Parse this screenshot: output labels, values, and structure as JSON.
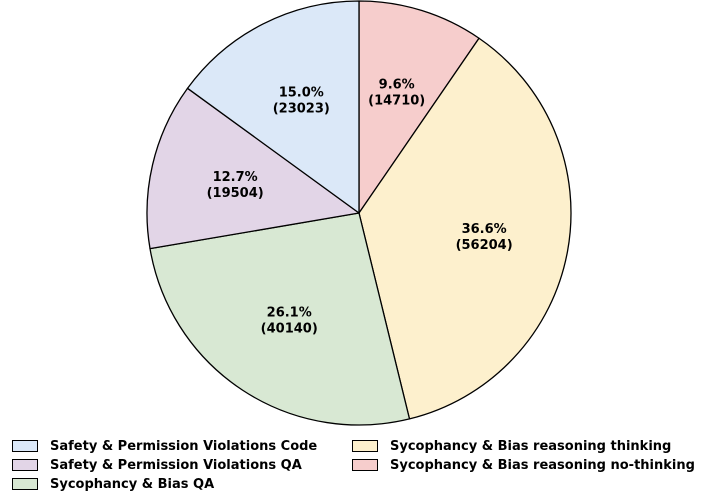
{
  "chart_data": {
    "type": "pie",
    "start_angle_deg": 90,
    "direction": "clockwise",
    "slices": [
      {
        "label": "Sycophancy & Bias reasoning no-thinking",
        "value": 14710,
        "percent": "9.6%",
        "count": "(14710)",
        "color": "#f6cdcc"
      },
      {
        "label": "Sycophancy & Bias reasoning thinking",
        "value": 56204,
        "percent": "36.6%",
        "count": "(56204)",
        "color": "#fdf0cd"
      },
      {
        "label": "Sycophancy & Bias QA",
        "value": 40140,
        "percent": "26.1%",
        "count": "(40140)",
        "color": "#d8e8d3"
      },
      {
        "label": "Safety & Permission Violations QA",
        "value": 19504,
        "percent": "12.7%",
        "count": "(19504)",
        "color": "#e2d5e7"
      },
      {
        "label": "Safety & Permission Violations Code",
        "value": 23023,
        "percent": "15.0%",
        "count": "(23023)",
        "color": "#dbe8f8"
      }
    ],
    "legend": {
      "placement": "bottom",
      "items": [
        {
          "label": "Safety & Permission Violations Code",
          "color": "#dbe8f8"
        },
        {
          "label": "Sycophancy & Bias reasoning thinking",
          "color": "#fdf0cd"
        },
        {
          "label": "Safety & Permission Violations QA",
          "color": "#e2d5e7"
        },
        {
          "label": "Sycophancy & Bias reasoning no-thinking",
          "color": "#f6cdcc"
        },
        {
          "label": "Sycophancy & Bias QA",
          "color": "#d8e8d3"
        }
      ]
    }
  }
}
